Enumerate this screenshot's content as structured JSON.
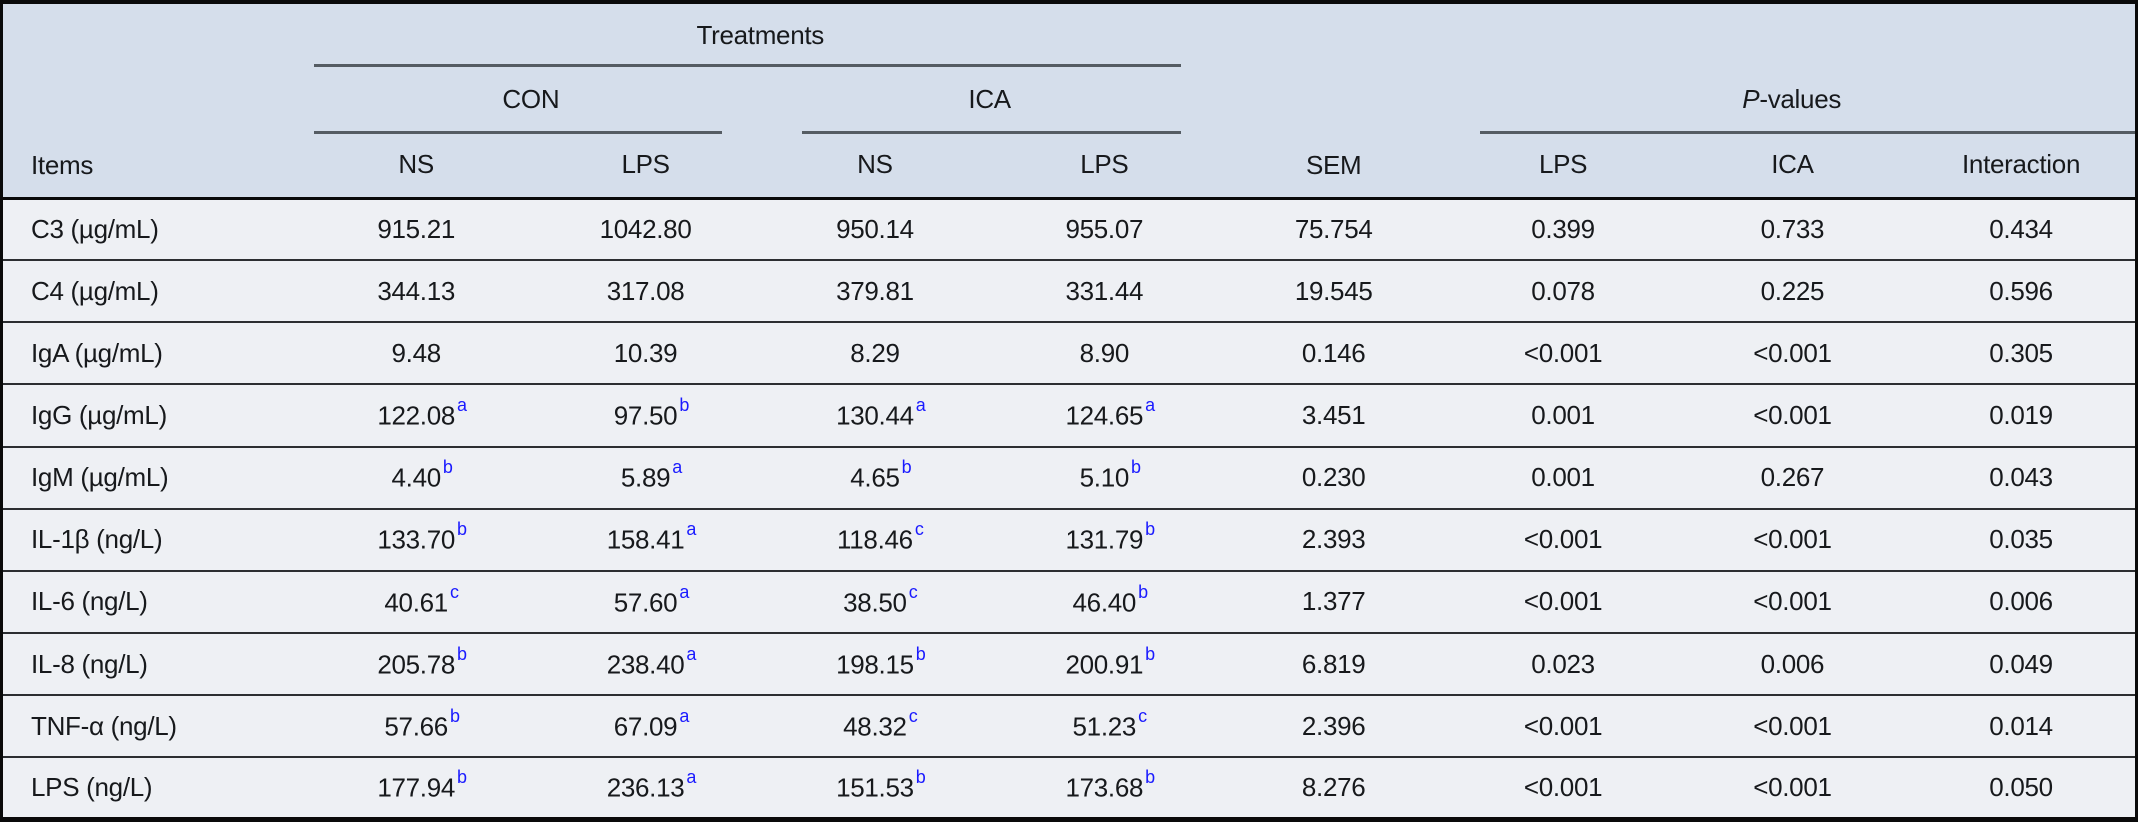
{
  "table": {
    "colors": {
      "header_bg": "#d5deeb",
      "body_bg": "#eef0f4",
      "superscript_blue": "#1a1aff",
      "text": "#17191c",
      "thin_rule_gray": "#555c63",
      "row_separator": "#2c2e31",
      "outer_border": "#0a0a0a"
    },
    "header": {
      "items": "Items",
      "treatments": "Treatments",
      "con": "CON",
      "ica": "ICA",
      "con_ns": "NS",
      "con_lps": "LPS",
      "ica_ns": "NS",
      "ica_lps": "LPS",
      "sem": "SEM",
      "pvalues_italic": "P",
      "pvalues_rest": "-values",
      "p_lps": "LPS",
      "p_ica": "ICA",
      "p_interaction": "Interaction"
    },
    "rows": [
      {
        "item": "C3 (µg/mL)",
        "con_ns": {
          "v": "915.21"
        },
        "con_lps": {
          "v": "1042.80"
        },
        "ica_ns": {
          "v": "950.14"
        },
        "ica_lps": {
          "v": "955.07"
        },
        "sem": "75.754",
        "p_lps": "0.399",
        "p_ica": "0.733",
        "p_interaction": "0.434"
      },
      {
        "item": "C4 (µg/mL)",
        "con_ns": {
          "v": "344.13"
        },
        "con_lps": {
          "v": "317.08"
        },
        "ica_ns": {
          "v": "379.81"
        },
        "ica_lps": {
          "v": "331.44"
        },
        "sem": "19.545",
        "p_lps": "0.078",
        "p_ica": "0.225",
        "p_interaction": "0.596"
      },
      {
        "item": "IgA (µg/mL)",
        "con_ns": {
          "v": "9.48"
        },
        "con_lps": {
          "v": "10.39"
        },
        "ica_ns": {
          "v": "8.29"
        },
        "ica_lps": {
          "v": "8.90"
        },
        "sem": "0.146",
        "p_lps": "<0.001",
        "p_ica": "<0.001",
        "p_interaction": "0.305"
      },
      {
        "item": "IgG (µg/mL)",
        "con_ns": {
          "v": "122.08",
          "sup": "a"
        },
        "con_lps": {
          "v": "97.50",
          "sup": "b"
        },
        "ica_ns": {
          "v": "130.44",
          "sup": "a"
        },
        "ica_lps": {
          "v": "124.65",
          "sup": "a"
        },
        "sem": "3.451",
        "p_lps": "0.001",
        "p_ica": "<0.001",
        "p_interaction": "0.019"
      },
      {
        "item": "IgM (µg/mL)",
        "con_ns": {
          "v": "4.40",
          "sup": "b"
        },
        "con_lps": {
          "v": "5.89",
          "sup": "a"
        },
        "ica_ns": {
          "v": "4.65",
          "sup": "b"
        },
        "ica_lps": {
          "v": "5.10",
          "sup": "b"
        },
        "sem": "0.230",
        "p_lps": "0.001",
        "p_ica": "0.267",
        "p_interaction": "0.043"
      },
      {
        "item": "IL-1β (ng/L)",
        "con_ns": {
          "v": "133.70",
          "sup": "b"
        },
        "con_lps": {
          "v": "158.41",
          "sup": "a"
        },
        "ica_ns": {
          "v": "118.46",
          "sup": "c"
        },
        "ica_lps": {
          "v": "131.79",
          "sup": "b"
        },
        "sem": "2.393",
        "p_lps": "<0.001",
        "p_ica": "<0.001",
        "p_interaction": "0.035"
      },
      {
        "item": "IL-6 (ng/L)",
        "con_ns": {
          "v": "40.61",
          "sup": "c"
        },
        "con_lps": {
          "v": "57.60",
          "sup": "a"
        },
        "ica_ns": {
          "v": "38.50",
          "sup": "c"
        },
        "ica_lps": {
          "v": "46.40",
          "sup": "b"
        },
        "sem": "1.377",
        "p_lps": "<0.001",
        "p_ica": "<0.001",
        "p_interaction": "0.006"
      },
      {
        "item": "IL-8 (ng/L)",
        "con_ns": {
          "v": "205.78",
          "sup": "b"
        },
        "con_lps": {
          "v": "238.40",
          "sup": "a"
        },
        "ica_ns": {
          "v": "198.15",
          "sup": "b"
        },
        "ica_lps": {
          "v": "200.91",
          "sup": "b"
        },
        "sem": "6.819",
        "p_lps": "0.023",
        "p_ica": "0.006",
        "p_interaction": "0.049"
      },
      {
        "item": "TNF-α (ng/L)",
        "con_ns": {
          "v": "57.66",
          "sup": "b"
        },
        "con_lps": {
          "v": "67.09",
          "sup": "a"
        },
        "ica_ns": {
          "v": "48.32",
          "sup": "c"
        },
        "ica_lps": {
          "v": "51.23",
          "sup": "c"
        },
        "sem": "2.396",
        "p_lps": "<0.001",
        "p_ica": "<0.001",
        "p_interaction": "0.014"
      },
      {
        "item": "LPS (ng/L)",
        "con_ns": {
          "v": "177.94",
          "sup": "b"
        },
        "con_lps": {
          "v": "236.13",
          "sup": "a"
        },
        "ica_ns": {
          "v": "151.53",
          "sup": "b"
        },
        "ica_lps": {
          "v": "173.68",
          "sup": "b"
        },
        "sem": "8.276",
        "p_lps": "<0.001",
        "p_ica": "<0.001",
        "p_interaction": "0.050"
      }
    ]
  }
}
